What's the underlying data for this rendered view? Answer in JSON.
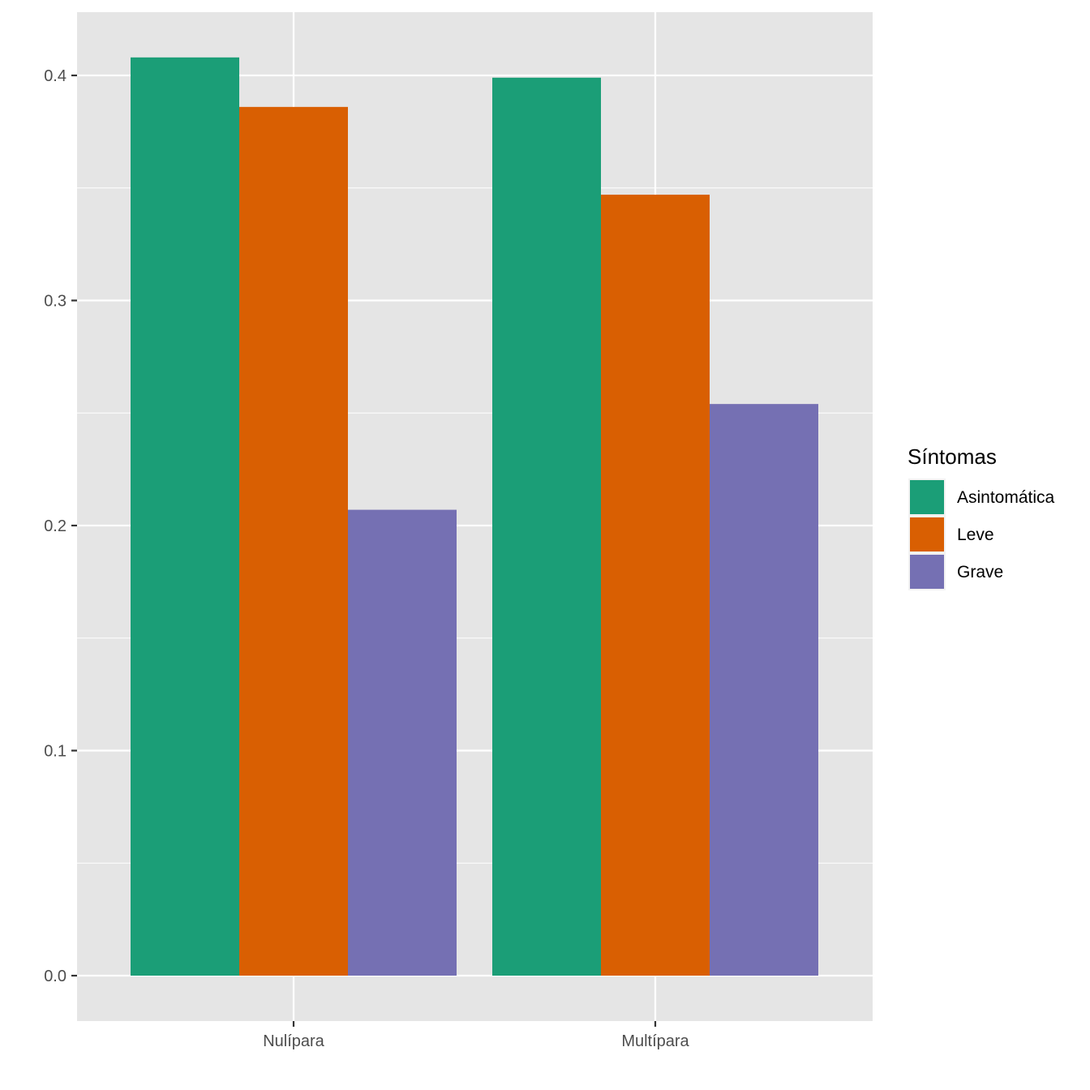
{
  "chart_data": {
    "type": "bar",
    "title": "",
    "xlabel": "",
    "ylabel": "",
    "categories": [
      "Nulípara",
      "Multípara"
    ],
    "series": [
      {
        "name": "Asintomática",
        "values": [
          0.408,
          0.399
        ],
        "color": "#1B9E77"
      },
      {
        "name": "Leve",
        "values": [
          0.386,
          0.347
        ],
        "color": "#D95F02"
      },
      {
        "name": "Grave",
        "values": [
          0.207,
          0.254
        ],
        "color": "#7570B3"
      }
    ],
    "ylim": [
      -0.02,
      0.428
    ],
    "yticks": [
      0.0,
      0.1,
      0.2,
      0.3,
      0.4
    ],
    "ytick_labels": [
      "0.0",
      "0.1",
      "0.2",
      "0.3",
      "0.4"
    ],
    "grid": true,
    "legend": {
      "title": "Síntomas",
      "placement": "right"
    },
    "colors": {
      "panel": "#E5E5E5",
      "gridline": "#FFFFFF",
      "tick_text": "#4D4D4D"
    }
  }
}
